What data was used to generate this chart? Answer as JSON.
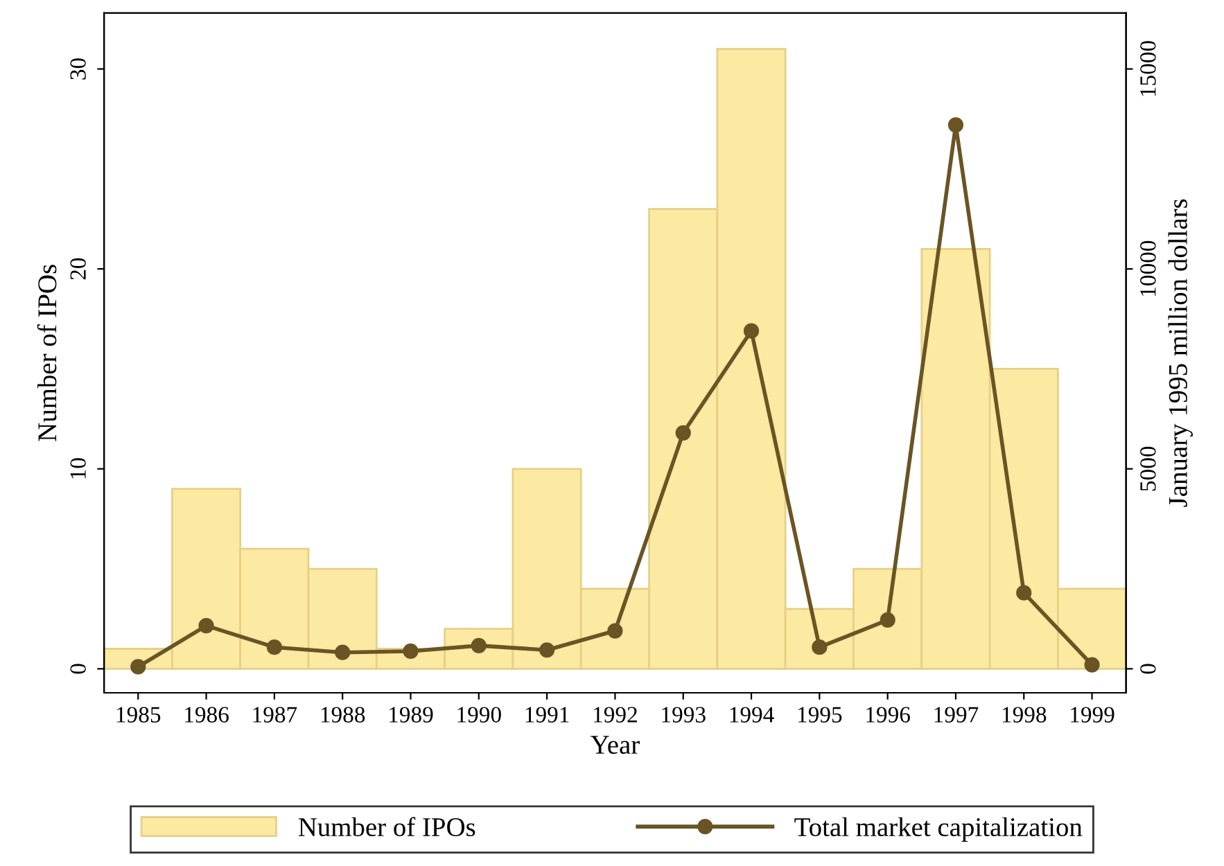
{
  "chart_data": {
    "type": "bar",
    "xlabel": "Year",
    "ylabel": "Number of IPOs",
    "y2label": "January 1995 million dollars",
    "categories": [
      "1985",
      "1986",
      "1987",
      "1988",
      "1989",
      "1990",
      "1991",
      "1992",
      "1993",
      "1994",
      "1995",
      "1996",
      "1997",
      "1998",
      "1999"
    ],
    "series": [
      {
        "name": "Number of IPOs",
        "color": "#fce9a2",
        "values": [
          1,
          9,
          6,
          5,
          1,
          2,
          10,
          4,
          23,
          31,
          3,
          5,
          21,
          15,
          4
        ]
      },
      {
        "name": "Total market capitalization",
        "type": "line",
        "axis": "y2",
        "color": "#6b5424",
        "marker": "circle",
        "line_style": "solid",
        "values": [
          50,
          1080,
          540,
          410,
          440,
          580,
          470,
          950,
          5900,
          8450,
          540,
          1220,
          13600,
          1900,
          100
        ]
      }
    ],
    "ylim": [
      -1.2,
      32.8
    ],
    "yticks": [
      0,
      10,
      20,
      30
    ],
    "y2lim": [
      -600,
      16400
    ],
    "y2ticks": [
      0,
      5000,
      10000,
      15000
    ],
    "grid": false,
    "legend": "bottom"
  }
}
